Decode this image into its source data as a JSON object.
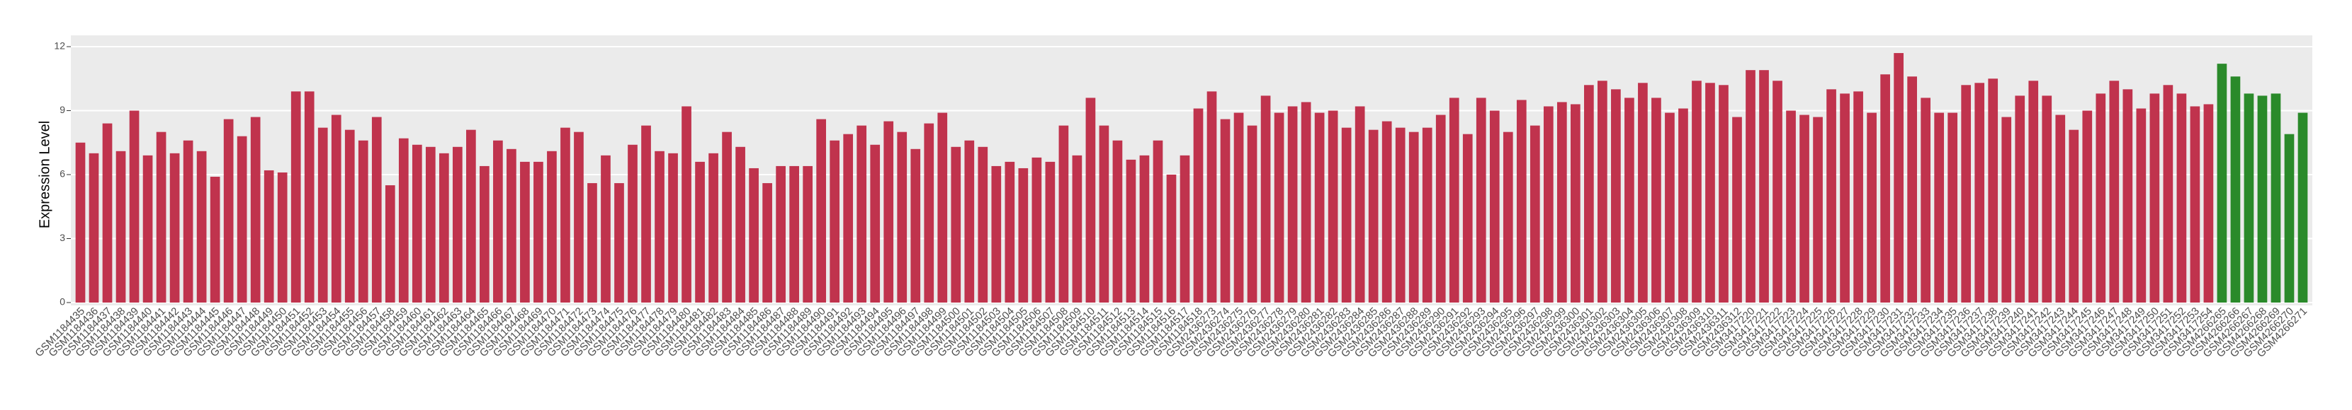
{
  "chart_data": {
    "type": "bar",
    "y_label": "Expression Level",
    "ylim": [
      0,
      12
    ],
    "yticks": [
      0,
      3,
      6,
      9,
      12
    ],
    "grid": true,
    "groups": [
      {
        "color": "#c0334d",
        "categories": [
          "GSM1184435",
          "GSM1184436",
          "GSM1184437",
          "GSM1184438",
          "GSM1184439",
          "GSM1184440",
          "GSM1184441",
          "GSM1184442",
          "GSM1184443",
          "GSM1184444",
          "GSM1184445",
          "GSM1184446",
          "GSM1184447",
          "GSM1184448",
          "GSM1184449",
          "GSM1184450",
          "GSM1184451",
          "GSM1184452",
          "GSM1184453",
          "GSM1184454",
          "GSM1184455",
          "GSM1184456",
          "GSM1184457",
          "GSM1184458",
          "GSM1184459",
          "GSM1184460",
          "GSM1184461",
          "GSM1184462",
          "GSM1184463",
          "GSM1184464",
          "GSM1184465",
          "GSM1184466",
          "GSM1184467",
          "GSM1184468",
          "GSM1184469",
          "GSM1184470",
          "GSM1184471",
          "GSM1184472",
          "GSM1184473",
          "GSM1184474",
          "GSM1184475",
          "GSM1184476",
          "GSM1184477",
          "GSM1184478",
          "GSM1184479",
          "GSM1184480",
          "GSM1184481",
          "GSM1184482",
          "GSM1184483",
          "GSM1184484",
          "GSM1184485",
          "GSM1184486",
          "GSM1184487",
          "GSM1184488",
          "GSM1184489",
          "GSM1184490",
          "GSM1184491",
          "GSM1184492",
          "GSM1184493",
          "GSM1184494",
          "GSM1184495",
          "GSM1184496",
          "GSM1184497",
          "GSM1184498",
          "GSM1184499",
          "GSM1184500",
          "GSM1184501",
          "GSM1184502",
          "GSM1184503",
          "GSM1184504",
          "GSM1184505",
          "GSM1184506",
          "GSM1184507",
          "GSM1184508",
          "GSM1184509",
          "GSM1184510",
          "GSM1184511",
          "GSM1184512",
          "GSM1184513",
          "GSM1184514",
          "GSM1184515",
          "GSM1184516",
          "GSM1184517",
          "GSM1184518",
          "GSM2436273",
          "GSM2436274",
          "GSM2436275",
          "GSM2436276",
          "GSM2436277",
          "GSM2436278",
          "GSM2436279",
          "GSM2436280",
          "GSM2436281",
          "GSM2436282",
          "GSM2436283",
          "GSM2436284",
          "GSM2436285",
          "GSM2436286",
          "GSM2436287",
          "GSM2436288",
          "GSM2436289",
          "GSM2436290",
          "GSM2436291",
          "GSM2436292",
          "GSM2436293",
          "GSM2436294",
          "GSM2436295",
          "GSM2436296",
          "GSM2436297",
          "GSM2436298",
          "GSM2436299",
          "GSM2436300",
          "GSM2436301",
          "GSM2436302",
          "GSM2436303",
          "GSM2436304",
          "GSM2436305",
          "GSM2436306",
          "GSM2436307",
          "GSM2436308",
          "GSM2436309",
          "GSM2436310",
          "GSM2436311",
          "GSM2436312",
          "GSM3417220",
          "GSM3417221",
          "GSM3417222",
          "GSM3417223",
          "GSM3417224",
          "GSM3417225",
          "GSM3417226",
          "GSM3417227",
          "GSM3417228",
          "GSM3417229",
          "GSM3417230",
          "GSM3417231",
          "GSM3417232",
          "GSM3417233",
          "GSM3417234",
          "GSM3417235",
          "GSM3417236",
          "GSM3417237",
          "GSM3417238",
          "GSM3417239",
          "GSM3417240",
          "GSM3417241",
          "GSM3417242",
          "GSM3417243",
          "GSM3417244",
          "GSM3417245",
          "GSM3417246",
          "GSM3417247",
          "GSM3417248",
          "GSM3417249",
          "GSM3417250",
          "GSM3417251",
          "GSM3417252",
          "GSM3417253",
          "GSM3417254"
        ],
        "values": [
          7.5,
          7.0,
          8.4,
          7.1,
          9.0,
          6.9,
          8.0,
          7.0,
          7.6,
          7.1,
          5.9,
          8.6,
          7.8,
          8.7,
          6.2,
          6.1,
          9.9,
          9.9,
          8.2,
          8.8,
          8.1,
          7.6,
          8.7,
          5.5,
          7.7,
          7.4,
          7.3,
          7.0,
          7.3,
          8.1,
          6.4,
          7.6,
          7.2,
          6.6,
          6.6,
          7.1,
          8.2,
          8.0,
          5.6,
          6.9,
          5.6,
          7.4,
          8.3,
          7.1,
          7.0,
          9.2,
          6.6,
          7.0,
          8.0,
          7.3,
          6.3,
          5.6,
          6.4,
          6.4,
          6.4,
          8.6,
          7.6,
          7.9,
          8.3,
          7.4,
          8.5,
          8.0,
          7.2,
          8.4,
          8.9,
          7.3,
          7.6,
          7.3,
          6.4,
          6.6,
          6.3,
          6.8,
          6.6,
          8.3,
          6.9,
          9.6,
          8.3,
          7.6,
          6.7,
          6.9,
          7.6,
          6.0,
          6.9,
          9.1,
          9.9,
          8.6,
          8.9,
          8.3,
          9.7,
          8.9,
          9.2,
          9.4,
          8.9,
          9.0,
          8.2,
          9.2,
          8.1,
          8.5,
          8.2,
          8.0,
          8.2,
          8.8,
          9.6,
          7.9,
          9.6,
          9.0,
          8.0,
          9.5,
          8.3,
          9.2,
          9.4,
          9.3,
          10.2,
          10.4,
          10.0,
          9.6,
          10.3,
          9.6,
          8.9,
          9.1,
          10.4,
          10.3,
          10.2,
          8.7,
          10.9,
          10.9,
          10.4,
          9.0,
          8.8,
          8.7,
          10.0,
          9.8,
          9.9,
          8.9,
          10.7,
          11.7,
          10.6,
          9.6,
          8.9,
          8.9,
          10.2,
          10.3,
          10.5,
          8.7,
          9.7,
          10.4,
          9.7,
          8.8,
          8.1,
          9.0,
          9.8,
          10.4,
          10.0,
          9.1,
          9.8,
          10.2,
          9.8,
          9.2,
          9.3
        ]
      },
      {
        "color": "#2a8a2a",
        "categories": [
          "GSM4266265",
          "GSM4266266",
          "GSM4266267",
          "GSM4266268",
          "GSM4266269",
          "GSM4266270",
          "GSM4266271"
        ],
        "values": [
          11.2,
          10.6,
          9.8,
          9.7,
          9.8,
          7.9,
          8.9
        ]
      }
    ]
  }
}
